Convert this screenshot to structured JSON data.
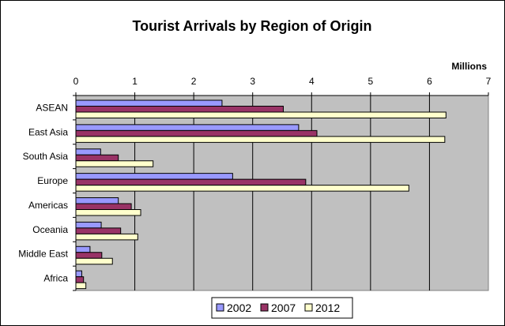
{
  "chart_data": {
    "type": "bar",
    "orientation": "horizontal",
    "title": "Tourist Arrivals by Region of Origin",
    "unit_label": "Millions",
    "xlim": [
      0,
      7
    ],
    "ticks": [
      "0",
      "1",
      "2",
      "3",
      "4",
      "5",
      "6",
      "7"
    ],
    "categories": [
      "ASEAN",
      "East Asia",
      "South Asia",
      "Europe",
      "Americas",
      "Oceania",
      "Middle East",
      "Africa"
    ],
    "series": [
      {
        "name": "2002",
        "color": "#9999ff",
        "values": [
          2.48,
          3.78,
          0.42,
          2.66,
          0.72,
          0.43,
          0.24,
          0.1
        ]
      },
      {
        "name": "2007",
        "color": "#993366",
        "values": [
          3.52,
          4.09,
          0.72,
          3.9,
          0.94,
          0.76,
          0.44,
          0.13
        ]
      },
      {
        "name": "2012",
        "color": "#ffffcc",
        "values": [
          6.28,
          6.26,
          1.31,
          5.65,
          1.1,
          1.05,
          0.62,
          0.17
        ]
      }
    ],
    "legend_position": "bottom",
    "plot_background": "#c0c0c0",
    "grid": true
  }
}
